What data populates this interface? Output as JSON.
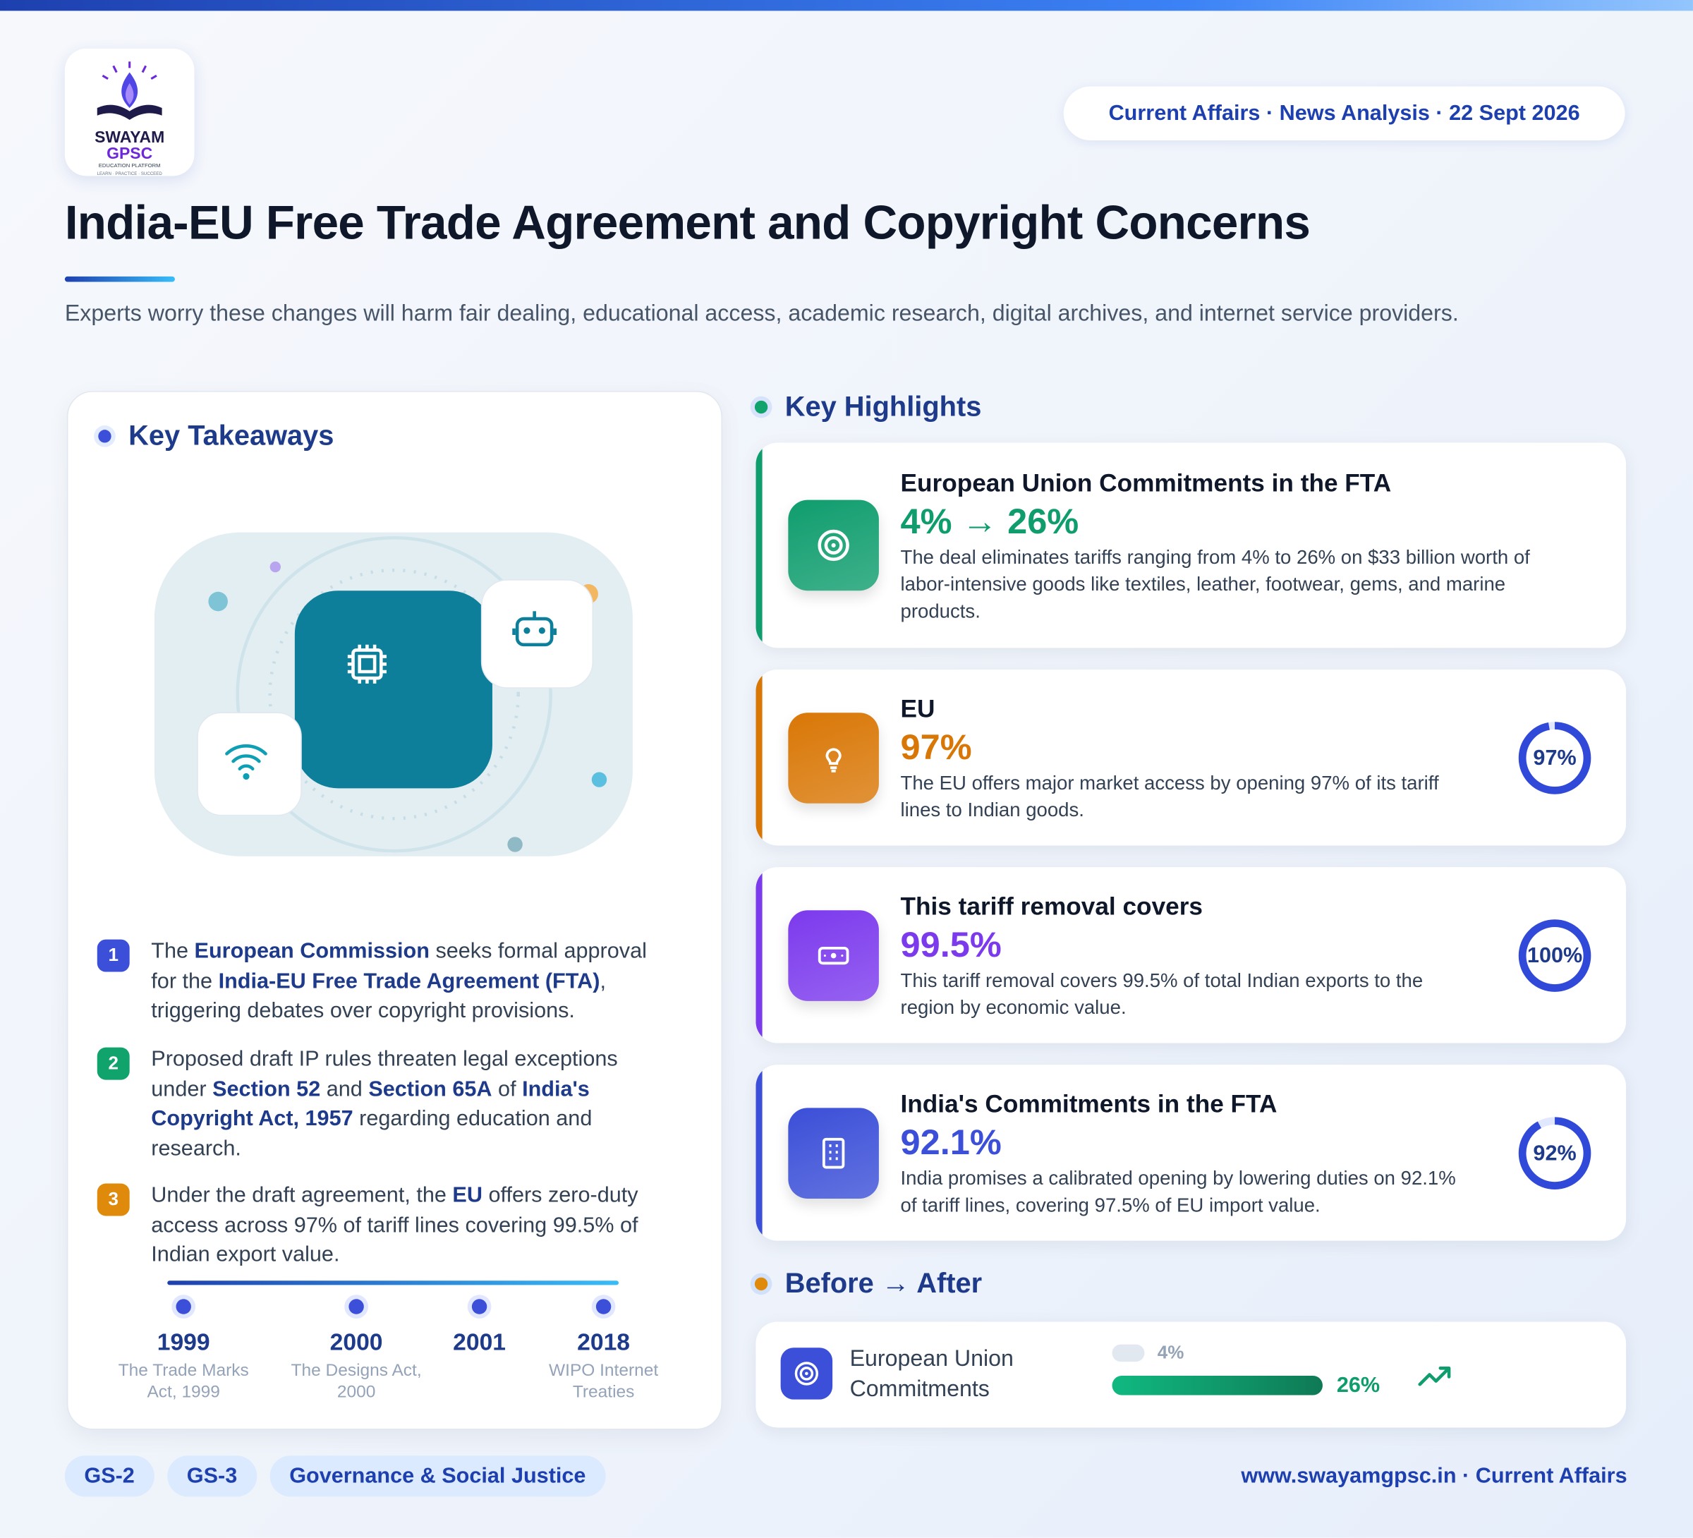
{
  "header": {
    "logo": {
      "line1": "SWAYAM",
      "line2": "GPSC",
      "line3": "EDUCATION PLATFORM",
      "line4": "LEARN · PRACTICE · SUCCEED"
    },
    "badge": "Current Affairs · News Analysis · 22 Sept 2026",
    "title": "India-EU Free Trade Agreement and Copyright Concerns",
    "subtitle": "Experts worry these changes will harm fair dealing, educational access, academic research, digital archives, and internet service providers."
  },
  "takeaways": {
    "heading": "Key Takeaways",
    "items": [
      {
        "number": "1",
        "color": "#3b4fd8",
        "segments": [
          {
            "text": "The "
          },
          {
            "text": "European Commission",
            "bold": true
          },
          {
            "text": " seeks formal approval for the "
          },
          {
            "text": "India-EU Free Trade Agreement (FTA)",
            "bold": true
          },
          {
            "text": ", triggering debates over copyright provisions."
          }
        ]
      },
      {
        "number": "2",
        "color": "#10a36c",
        "segments": [
          {
            "text": "Proposed draft IP rules threaten legal exceptions under "
          },
          {
            "text": "Section 52",
            "bold": true
          },
          {
            "text": " and "
          },
          {
            "text": "Section 65A",
            "bold": true
          },
          {
            "text": " of "
          },
          {
            "text": "India's Copyright Act, 1957",
            "bold": true
          },
          {
            "text": " regarding education and research."
          }
        ]
      },
      {
        "number": "3",
        "color": "#e08a0b",
        "segments": [
          {
            "text": "Under the draft agreement, the "
          },
          {
            "text": "EU",
            "bold": true
          },
          {
            "text": " offers zero-duty access across 97% of tariff lines covering 99.5% of Indian export value."
          }
        ]
      }
    ],
    "timeline": [
      {
        "year": "1999",
        "label": "The Trade Marks Act, 1999"
      },
      {
        "year": "2000",
        "label": "The Designs Act, 2000"
      },
      {
        "year": "2001"
      },
      {
        "year": "2018",
        "label": "WIPO Internet Treaties"
      }
    ]
  },
  "highlights": {
    "heading": "Key Highlights",
    "cards": [
      {
        "title": "European Union Commitments in the FTA",
        "stat": "4% → 26%",
        "text": "The deal eliminates tariffs ranging from 4% to 26% on $33 billion worth of labor-intensive goods like textiles, leather, footwear, gems, and marine products.",
        "color": "#0f9d6e"
      },
      {
        "title": "EU",
        "stat": "97%",
        "text": "The EU offers major market access by opening 97% of its tariff lines to Indian goods.",
        "color": "#d97706",
        "ring": {
          "value": 97,
          "label": "97%"
        }
      },
      {
        "title": "This tariff removal covers",
        "stat": "99.5%",
        "text": "This tariff removal covers 99.5% of total Indian exports to the region by economic value.",
        "color": "#7c3aed",
        "ring": {
          "value": 100,
          "label": "100%"
        }
      },
      {
        "title": "India's Commitments in the FTA",
        "stat": "92.1%",
        "text": "India promises a calibrated opening by lowering duties on 92.1% of tariff lines, covering 97.5% of EU import value.",
        "color": "#3b4fd8",
        "ring": {
          "value": 92,
          "label": "92%"
        }
      }
    ]
  },
  "before_after": {
    "heading": "Before → After",
    "rows": [
      {
        "label": "European Union Commitments",
        "before": {
          "value": 4,
          "label": "4%"
        },
        "after": {
          "value": 26,
          "label": "26%"
        }
      }
    ]
  },
  "footer": {
    "tags": [
      "GS-2",
      "GS-3",
      "Governance & Social Justice"
    ],
    "url": "www.swayamgpsc.in · Current Affairs"
  }
}
